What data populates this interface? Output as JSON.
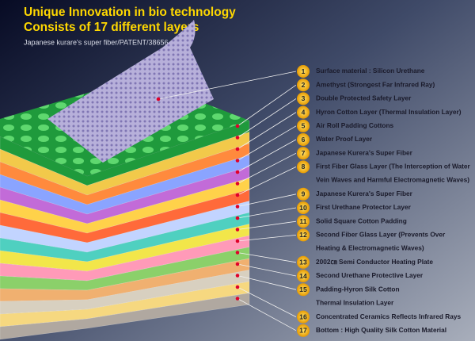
{
  "header": {
    "title_lines": [
      "Unique Innovation in bio technology",
      "Consists of 17 different layers"
    ],
    "subtitle": "Japanese kurare's super fiber/PATENT/38656"
  },
  "layers": [
    {
      "number": "1",
      "lines": [
        "Surface material : Silicon Urethane"
      ]
    },
    {
      "number": "2",
      "lines": [
        "Amethyst (Strongest Far Infrared Ray)"
      ]
    },
    {
      "number": "3",
      "lines": [
        "Double Protected Safety Layer"
      ]
    },
    {
      "number": "4",
      "lines": [
        "Hyron Cotton Layer (Thermal Insulation Layer)"
      ]
    },
    {
      "number": "5",
      "lines": [
        "Air Roll Padding Cottons"
      ]
    },
    {
      "number": "6",
      "lines": [
        "Water Proof Layer"
      ]
    },
    {
      "number": "7",
      "lines": [
        "Japanese Kurera's Super Fiber"
      ]
    },
    {
      "number": "8",
      "lines": [
        "First Fiber Glass Layer (The Interception of Water",
        "Vein Waves and Harmful Electromagnetic Waves)"
      ]
    },
    {
      "number": "9",
      "lines": [
        "Japanese Kurera's Super Fiber"
      ]
    },
    {
      "number": "10",
      "lines": [
        "First Urethane Protector Layer"
      ]
    },
    {
      "number": "11",
      "lines": [
        "Solid Square Cotton Padding"
      ]
    },
    {
      "number": "12",
      "lines": [
        "Second Fiber Glass Layer (Prevents Over",
        "Heating & Electromagnetic Waves)"
      ]
    },
    {
      "number": "13",
      "lines": [
        "2002㎝ Semi Conductor Heating Plate"
      ]
    },
    {
      "number": "14",
      "lines": [
        "Second Urethane Protective Layer"
      ]
    },
    {
      "number": "15",
      "lines": [
        "Padding-Hyron Silk Cotton",
        "Thermal Insulation Layer"
      ]
    },
    {
      "number": "16",
      "lines": [
        "Concentrated Ceramics Reflects Infrared Rays"
      ]
    },
    {
      "number": "17",
      "lines": [
        "Bottom : High Quality Silk Cotton Material"
      ]
    }
  ]
}
